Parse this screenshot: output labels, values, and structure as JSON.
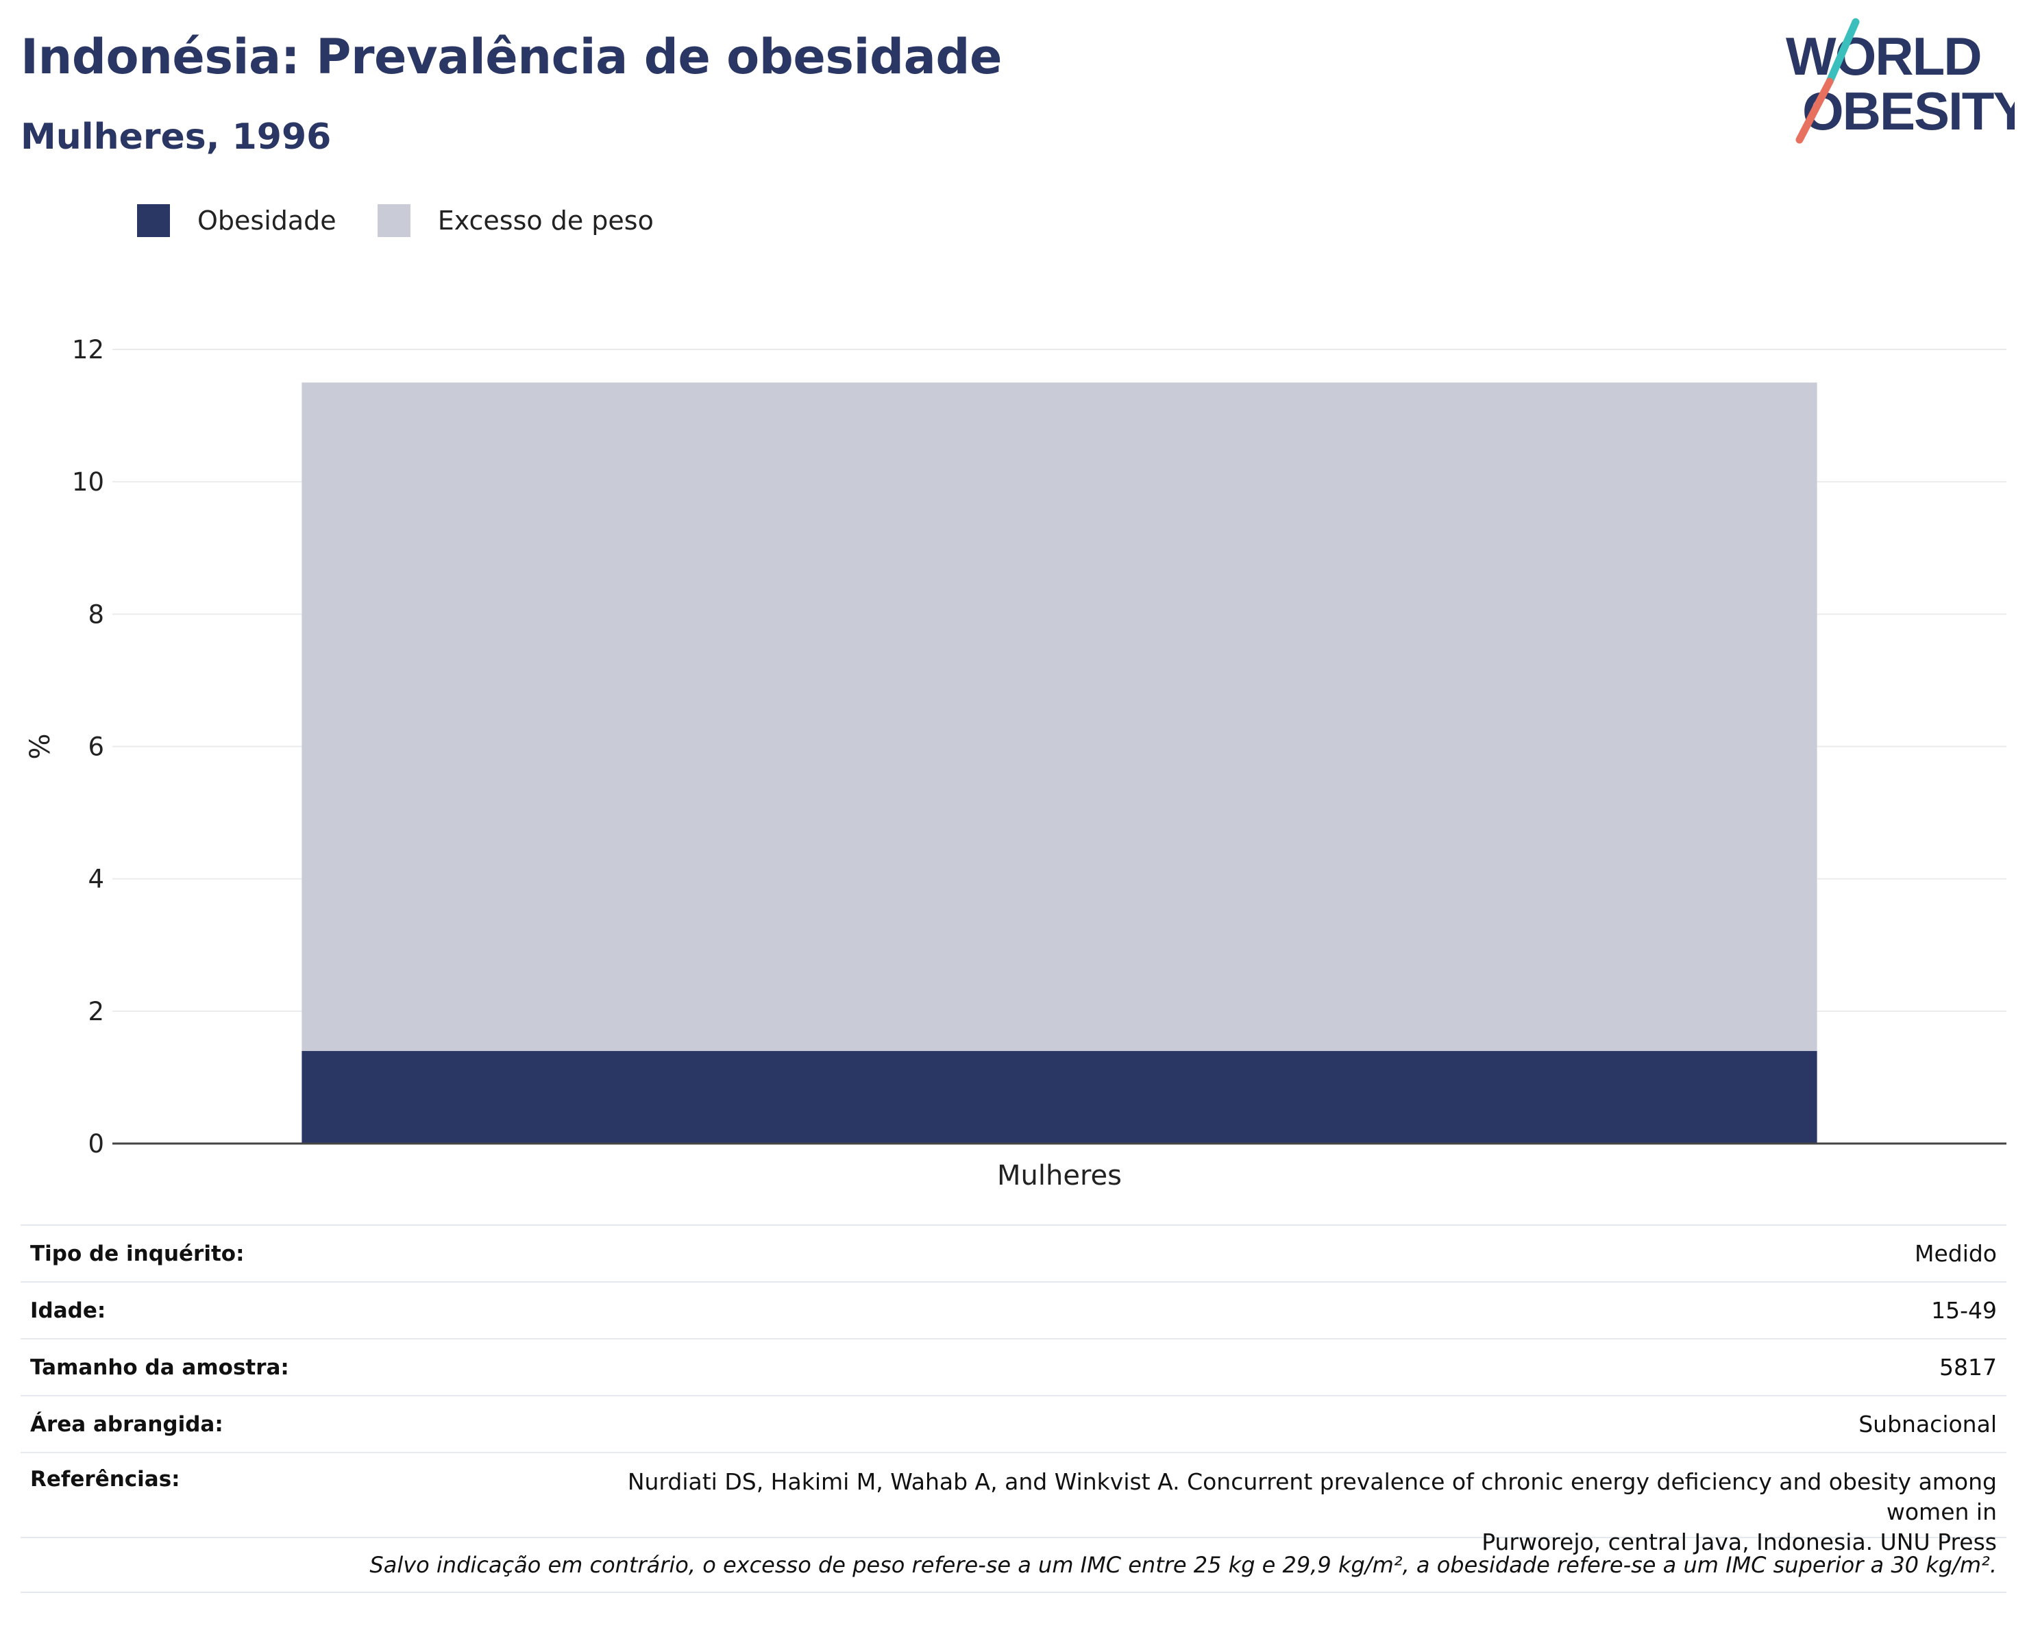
{
  "header": {
    "title": "Indonésia: Prevalência de obesidade",
    "subtitle": "Mulheres, 1996"
  },
  "logo": {
    "line1": "WORLD",
    "line2": "OBESITY",
    "colors": {
      "text": "#2a3664",
      "slash_teal": "#3bbfbd",
      "slash_coral": "#e8705f"
    }
  },
  "legend": [
    {
      "label": "Obesidade",
      "color": "#2a3664"
    },
    {
      "label": "Excesso de peso",
      "color": "#c9ccd7"
    }
  ],
  "chart_data": {
    "type": "bar",
    "stacked": true,
    "categories": [
      "Mulheres"
    ],
    "series": [
      {
        "name": "Obesidade",
        "values": [
          1.4
        ],
        "color": "#2a3664"
      },
      {
        "name": "Excesso de peso",
        "values": [
          10.1
        ],
        "color": "#c9ccd7"
      }
    ],
    "ylabel": "%",
    "xlabel": "",
    "ylim": [
      0,
      12
    ],
    "yticks": [
      0,
      2,
      4,
      6,
      8,
      10,
      12
    ],
    "grid": true
  },
  "info": {
    "survey_type": {
      "label": "Tipo de inquérito:",
      "value": "Medido"
    },
    "age": {
      "label": "Idade:",
      "value": "15-49"
    },
    "sample_size": {
      "label": "Tamanho da amostra:",
      "value": "5817"
    },
    "area": {
      "label": "Área abrangida:",
      "value": "Subnacional"
    },
    "references": {
      "label": "Referências:",
      "line1": "Nurdiati DS, Hakimi M, Wahab A, and Winkvist A. Concurrent prevalence of chronic energy deficiency and obesity among women in",
      "line2": "Purworejo, central Java, Indonesia. UNU Press"
    },
    "note": "Salvo indicação em contrário, o excesso de peso refere-se a um IMC entre 25 kg e 29,9 kg/m², a obesidade refere-se a um IMC superior a 30 kg/m²."
  }
}
